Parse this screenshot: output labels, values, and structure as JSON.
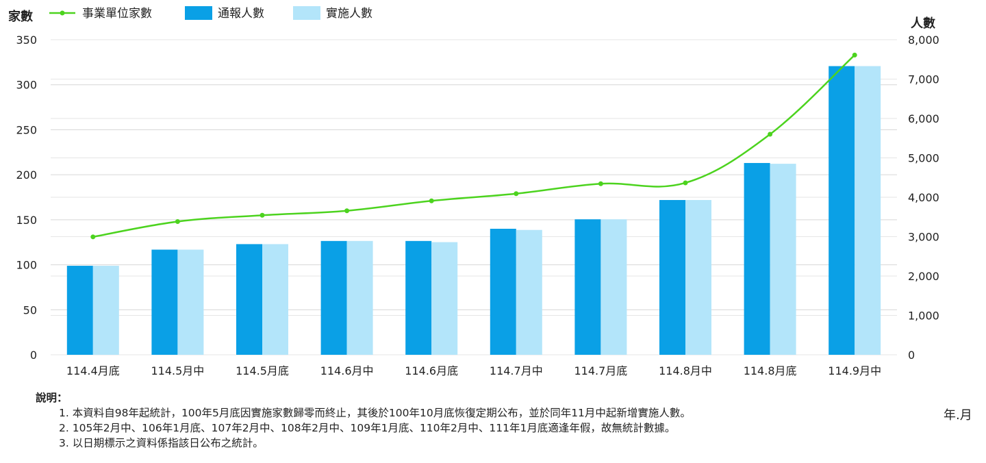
{
  "chart_data": {
    "type": "bar+line",
    "categories": [
      "114.4月底",
      "114.5月中",
      "114.5月底",
      "114.6月中",
      "114.6月底",
      "114.7月中",
      "114.7月底",
      "114.8月中",
      "114.8月底",
      "114.9月中"
    ],
    "series": [
      {
        "name": "通報人數",
        "type": "bar",
        "axis": "right",
        "color": "#0aa0e6",
        "values": [
          2260,
          2670,
          2810,
          2890,
          2890,
          3200,
          3440,
          3930,
          4870,
          7330
        ]
      },
      {
        "name": "實施人數",
        "type": "bar",
        "axis": "right",
        "color": "#b3e5fa",
        "values": [
          2260,
          2670,
          2810,
          2890,
          2860,
          3170,
          3440,
          3930,
          4850,
          7330
        ]
      },
      {
        "name": "事業單位家數",
        "type": "line",
        "axis": "left",
        "color": "#4cd31e",
        "values": [
          131,
          148,
          155,
          160,
          171,
          179,
          190,
          191,
          245,
          333
        ]
      }
    ],
    "left_axis": {
      "label": "家數",
      "min": 0,
      "max": 350,
      "ticks": [
        0,
        50,
        100,
        150,
        200,
        250,
        300,
        350
      ]
    },
    "right_axis": {
      "label": "人數",
      "min": 0,
      "max": 8000,
      "ticks": [
        0,
        1000,
        2000,
        3000,
        4000,
        5000,
        6000,
        7000,
        8000
      ],
      "tick_labels": [
        "0",
        "1,000",
        "2,000",
        "3,000",
        "4,000",
        "5,000",
        "6,000",
        "7,000",
        "8,000"
      ]
    },
    "x_axis_unit": "年.月",
    "legend_position": "top-left",
    "grid": true
  },
  "notes": {
    "title": "說明：",
    "items": [
      "1. 本資料自98年起統計，100年5月底因實施家數歸零而終止，其後於100年10月底恢復定期公布，並於同年11月中起新增實施人數。",
      "2. 105年2月中、106年1月底、107年2月中、108年2月中、109年1月底、110年2月中、111年1月底適逢年假，故無統計數據。",
      "3. 以日期標示之資料係指該日公布之統計。"
    ]
  }
}
